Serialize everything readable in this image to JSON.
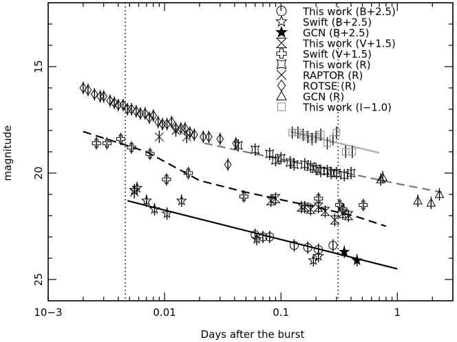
{
  "chart_data": {
    "type": "scatter",
    "xlabel": "Days after the burst",
    "ylabel": "magnitude",
    "x_scale": "log",
    "xlim": [
      0.001,
      3.0
    ],
    "ylim": [
      26.0,
      12.0
    ],
    "x_ticks": [
      {
        "value": 0.001,
        "label": "10−3"
      },
      {
        "value": 0.01,
        "label": "0.01"
      },
      {
        "value": 0.1,
        "label": "0.1"
      },
      {
        "value": 1,
        "label": "1"
      }
    ],
    "y_ticks": [
      {
        "value": 15,
        "label": "15"
      },
      {
        "value": 20,
        "label": "20"
      },
      {
        "value": 25,
        "label": "25"
      }
    ],
    "legend_position": "top-right",
    "vlines": [
      0.0046,
      0.31
    ],
    "series": [
      {
        "name": "This work (B+2.5)",
        "marker": "circle",
        "x": [
          0.06,
          0.07,
          0.08,
          0.13,
          0.17,
          0.21,
          0.28
        ],
        "y": [
          22.9,
          23.0,
          23.0,
          23.4,
          23.5,
          23.6,
          23.4
        ]
      },
      {
        "name": "Swift (B+2.5)",
        "marker": "star",
        "x": [
          0.0055,
          0.0058,
          0.007,
          0.0082,
          0.0105,
          0.014,
          0.062,
          0.19,
          0.21
        ],
        "y": [
          20.8,
          20.7,
          21.3,
          21.7,
          21.9,
          21.3,
          23.1,
          24.1,
          23.9
        ]
      },
      {
        "name": "GCN (B+2.5)",
        "marker": "filled-star",
        "x": [
          0.35,
          0.45
        ],
        "y": [
          23.7,
          24.1
        ]
      },
      {
        "name": "This work (V+1.5)",
        "marker": "hourglass",
        "x": [
          0.082,
          0.09,
          0.15,
          0.16,
          0.18,
          0.21,
          0.24,
          0.29,
          0.34,
          0.38
        ],
        "y": [
          21.3,
          21.2,
          21.6,
          21.6,
          21.7,
          21.6,
          21.8,
          22.2,
          21.9,
          22.0
        ]
      },
      {
        "name": "Swift (V+1.5)",
        "marker": "cross",
        "x": [
          0.0026,
          0.0032,
          0.0042,
          0.0052,
          0.0075,
          0.0104,
          0.016,
          0.048,
          0.21,
          0.32,
          0.34,
          0.51
        ],
        "y": [
          18.6,
          18.6,
          18.4,
          18.8,
          19.1,
          20.3,
          20.0,
          21.1,
          21.2,
          21.5,
          21.7,
          21.5
        ]
      },
      {
        "name": "This work (R)",
        "marker": "bowtie",
        "x": [
          0.043,
          0.06,
          0.08,
          0.09,
          0.1,
          0.12,
          0.13,
          0.16,
          0.18,
          0.2,
          0.22,
          0.25,
          0.27,
          0.3,
          0.35,
          0.4
        ],
        "y": [
          18.7,
          18.9,
          19.1,
          19.4,
          19.3,
          19.5,
          19.6,
          19.6,
          19.7,
          19.8,
          19.9,
          19.9,
          20.0,
          20.0,
          20.1,
          20.0
        ]
      },
      {
        "name": "RAPTOR (R)",
        "marker": "x",
        "x": [
          0.0055,
          0.009,
          0.0125,
          0.0155
        ],
        "y": [
          20.9,
          18.3,
          18.0,
          18.3
        ]
      },
      {
        "name": "ROTSE (R)",
        "marker": "diamond",
        "x": [
          0.002,
          0.0022,
          0.0025,
          0.0028,
          0.003,
          0.0034,
          0.0037,
          0.004,
          0.0044,
          0.0048,
          0.0052,
          0.0057,
          0.0062,
          0.0068,
          0.0074,
          0.008,
          0.0088,
          0.0096,
          0.0105,
          0.0115,
          0.0125,
          0.0138,
          0.015,
          0.0165,
          0.018,
          0.0215,
          0.024,
          0.03,
          0.035,
          0.041
        ],
        "y": [
          16.0,
          16.1,
          16.3,
          16.4,
          16.4,
          16.6,
          16.7,
          16.8,
          16.8,
          17.0,
          17.0,
          17.1,
          17.2,
          17.2,
          17.4,
          17.3,
          17.6,
          17.7,
          17.7,
          17.6,
          17.9,
          17.9,
          17.9,
          18.1,
          18.2,
          18.3,
          18.3,
          18.4,
          19.6,
          18.6
        ]
      },
      {
        "name": "GCN (R)",
        "marker": "triangle",
        "x": [
          0.72,
          0.75,
          1.5,
          1.95,
          2.3
        ],
        "y": [
          20.3,
          20.2,
          21.3,
          21.4,
          21.0
        ]
      },
      {
        "name": "This work (I−1.0)",
        "marker": "square",
        "x": [
          0.125,
          0.14,
          0.155,
          0.17,
          0.185,
          0.2,
          0.22,
          0.25,
          0.28,
          0.3,
          0.36,
          0.41
        ],
        "y": [
          18.1,
          18.1,
          18.2,
          18.3,
          18.4,
          18.3,
          18.2,
          18.6,
          18.4,
          18.1,
          19.0,
          19.0
        ]
      }
    ],
    "fit_lines": [
      {
        "style": "solid",
        "color": "#000000",
        "x": [
          0.0048,
          1.0
        ],
        "y": [
          21.3,
          24.5
        ]
      },
      {
        "style": "dashed",
        "color": "#000000",
        "x": [
          0.002,
          0.007,
          0.02,
          0.05,
          0.1,
          0.2,
          0.45,
          0.8
        ],
        "y": [
          18.05,
          19.0,
          20.35,
          20.9,
          21.25,
          21.6,
          22.05,
          22.5
        ]
      },
      {
        "style": "dashed",
        "color": "#777777",
        "x": [
          0.022,
          0.1,
          0.3,
          1.0,
          2.4
        ],
        "y": [
          18.6,
          19.35,
          19.9,
          20.5,
          20.9
        ]
      },
      {
        "style": "solid",
        "color": "#aaaaaa",
        "x": [
          0.12,
          0.7
        ],
        "y": [
          18.05,
          19.05
        ]
      }
    ]
  }
}
